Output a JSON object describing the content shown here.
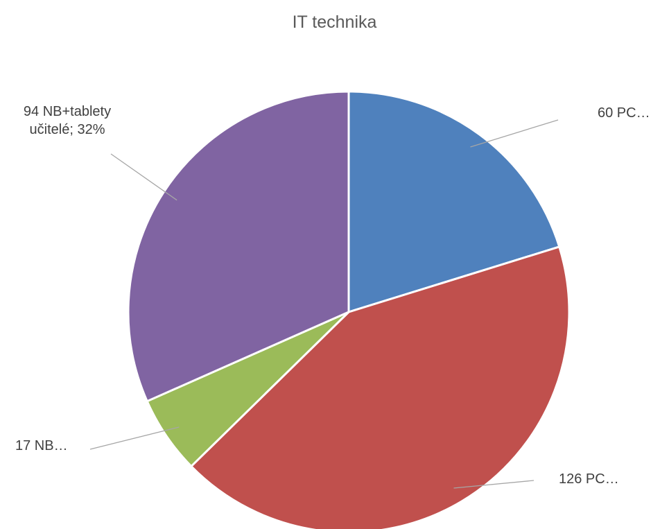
{
  "chart_data": {
    "type": "pie",
    "title": "IT technika",
    "categories": [
      "60 PC…",
      "126 PC…",
      "17 NB…",
      "94 NB+tablety učitelé; 32%"
    ],
    "values": [
      20.2,
      42.4,
      5.7,
      31.6
    ],
    "colors": [
      "#4f81bd",
      "#c0504d",
      "#9bbb59",
      "#8064a2"
    ]
  }
}
